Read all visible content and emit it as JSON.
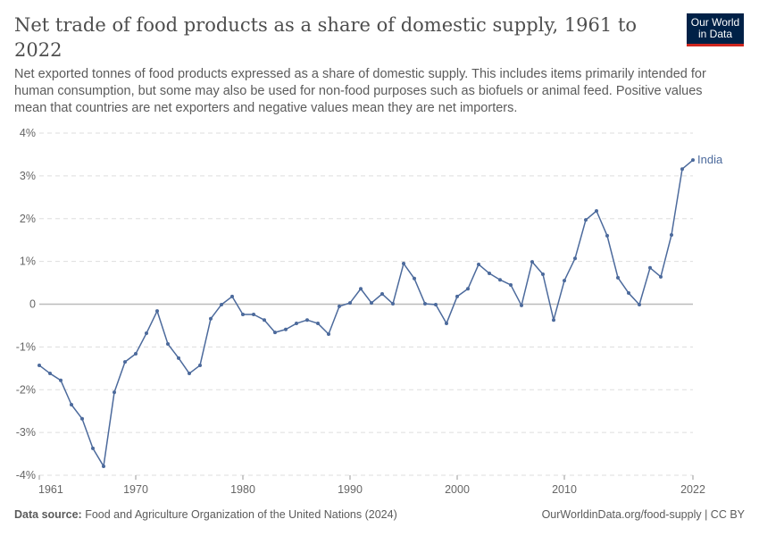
{
  "header": {
    "title": "Net trade of food products as a share of domestic supply, 1961 to 2022",
    "subtitle": "Net exported tonnes of food products expressed as a share of domestic supply. This includes items primarily intended for human consumption, but some may also be used for non-food purposes such as biofuels or animal feed. Positive values mean that countries are net exporters and negative values mean they are net importers.",
    "logo": "Our World in Data"
  },
  "footer": {
    "source_label": "Data source:",
    "source": "Food and Agriculture Organization of the United Nations (2024)",
    "link": "OurWorldinData.org/food-supply | CC BY"
  },
  "colors": {
    "series": "#4c6a9c"
  },
  "chart_data": {
    "type": "line",
    "title": "Net trade of food products as a share of domestic supply, 1961 to 2022",
    "ylabel": "",
    "xlabel": "",
    "ylim": [
      -4,
      4
    ],
    "xlim": [
      1961,
      2022
    ],
    "yticks": [
      -4,
      -3,
      -2,
      -1,
      0,
      1,
      2,
      3,
      4
    ],
    "ytick_labels": [
      "-4%",
      "-3%",
      "-2%",
      "-1%",
      "0",
      "1%",
      "2%",
      "3%",
      "4%"
    ],
    "xticks": [
      1961,
      1970,
      1980,
      1990,
      2000,
      2010,
      2022
    ],
    "xtick_labels": [
      "1961",
      "1970",
      "1980",
      "1990",
      "2000",
      "2010",
      "2022"
    ],
    "grid": true,
    "series": [
      {
        "name": "India",
        "x": [
          1961,
          1962,
          1963,
          1964,
          1965,
          1966,
          1967,
          1968,
          1969,
          1970,
          1971,
          1972,
          1973,
          1974,
          1975,
          1976,
          1977,
          1978,
          1979,
          1980,
          1981,
          1982,
          1983,
          1984,
          1985,
          1986,
          1987,
          1988,
          1989,
          1990,
          1991,
          1992,
          1993,
          1994,
          1995,
          1996,
          1997,
          1998,
          1999,
          2000,
          2001,
          2002,
          2003,
          2004,
          2005,
          2006,
          2007,
          2008,
          2009,
          2010,
          2011,
          2012,
          2013,
          2014,
          2015,
          2016,
          2017,
          2018,
          2019,
          2020,
          2021,
          2022
        ],
        "values": [
          -1.43,
          -1.62,
          -1.78,
          -2.35,
          -2.68,
          -3.37,
          -3.79,
          -2.06,
          -1.35,
          -1.16,
          -0.68,
          -0.16,
          -0.93,
          -1.26,
          -1.62,
          -1.43,
          -0.34,
          -0.01,
          0.18,
          -0.24,
          -0.24,
          -0.37,
          -0.66,
          -0.59,
          -0.45,
          -0.37,
          -0.45,
          -0.7,
          -0.05,
          0.03,
          0.36,
          0.03,
          0.24,
          0.01,
          0.95,
          0.6,
          0.01,
          -0.01,
          -0.45,
          0.18,
          0.36,
          0.93,
          0.72,
          0.57,
          0.45,
          -0.03,
          0.99,
          0.7,
          -0.37,
          0.55,
          1.07,
          1.97,
          2.18,
          1.6,
          0.62,
          0.26,
          -0.01,
          0.85,
          0.64,
          1.62,
          3.16,
          3.37
        ]
      }
    ]
  }
}
